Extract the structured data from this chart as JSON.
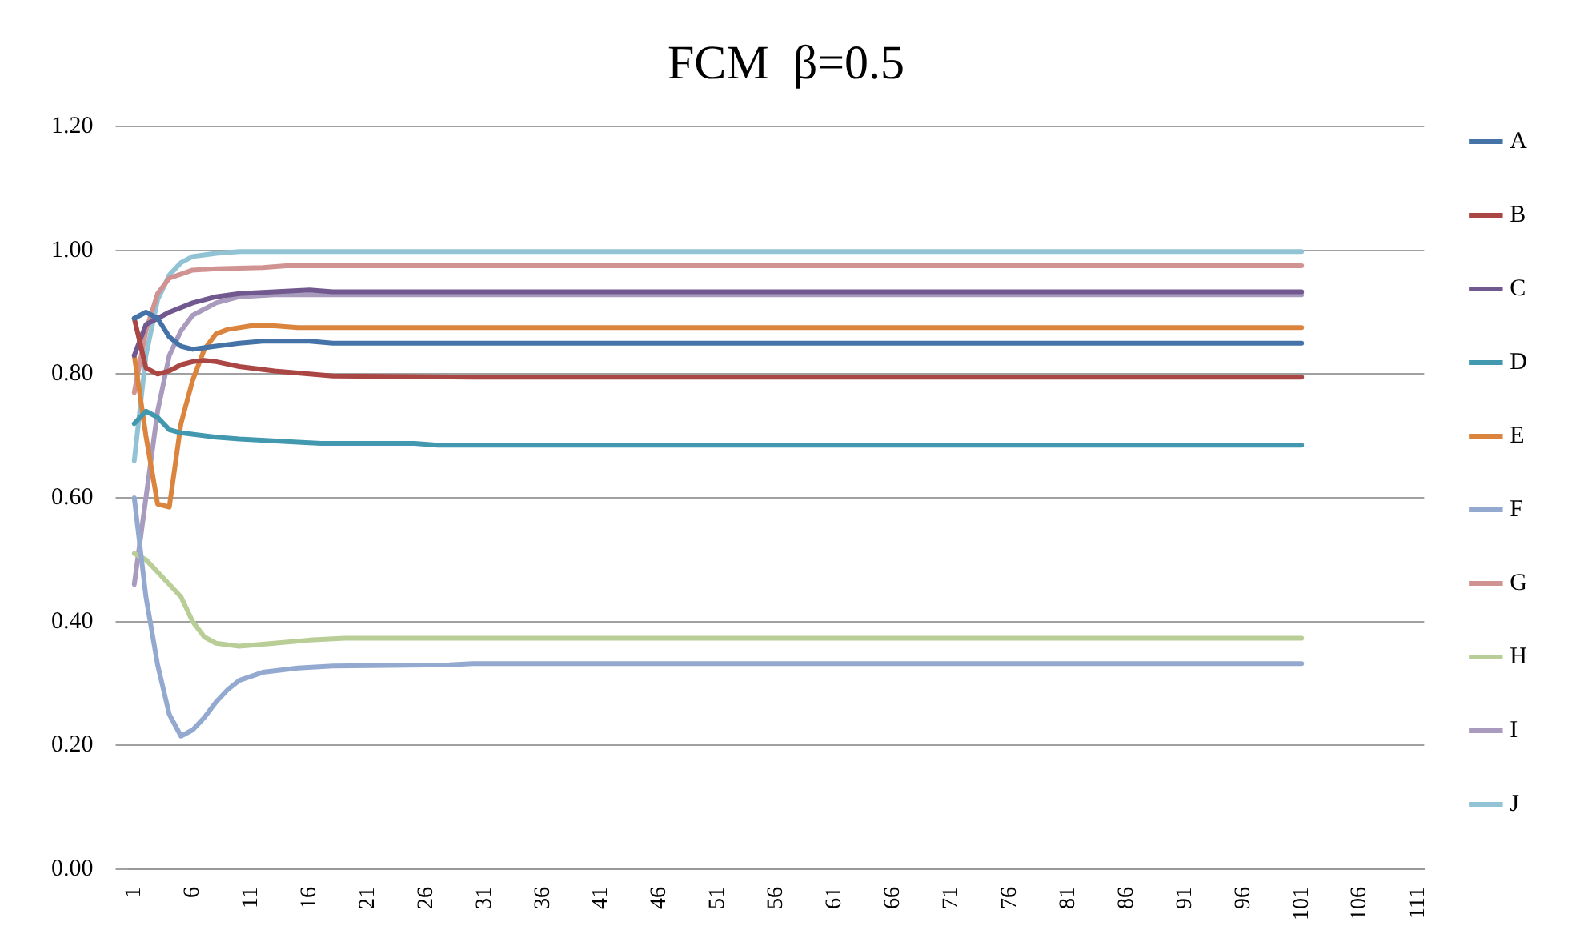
{
  "chart_data": {
    "type": "line",
    "title": "FCM  β=0.5",
    "xlim": [
      0.5,
      111.5
    ],
    "xticks": [
      1,
      6,
      11,
      16,
      21,
      26,
      31,
      36,
      41,
      46,
      51,
      56,
      61,
      66,
      71,
      76,
      81,
      86,
      91,
      96,
      101,
      106,
      111
    ],
    "ylim": [
      0,
      1.2
    ],
    "yticks": [
      {
        "value": 0,
        "label": "0.00"
      },
      {
        "value": 0.2,
        "label": "0.20"
      },
      {
        "value": 0.4,
        "label": "0.40"
      },
      {
        "value": 0.6,
        "label": "0.60"
      },
      {
        "value": 0.8,
        "label": "0.80"
      },
      {
        "value": 1,
        "label": "1.00"
      },
      {
        "value": 1.2,
        "label": "1.20"
      }
    ],
    "grid": "y",
    "legend": "right",
    "marker": "none",
    "line_style": "solid",
    "series": [
      {
        "name": "A",
        "color": "#4573a7",
        "x": [
          1,
          2,
          3,
          4,
          5,
          6,
          8,
          10,
          12,
          16,
          18,
          101
        ],
        "values": [
          0.89,
          0.9,
          0.89,
          0.86,
          0.845,
          0.84,
          0.845,
          0.85,
          0.853,
          0.853,
          0.85,
          0.85
        ]
      },
      {
        "name": "B",
        "color": "#aa4643",
        "x": [
          1,
          2,
          3,
          4,
          5,
          6,
          7,
          8,
          10,
          13,
          16,
          18,
          30,
          101
        ],
        "values": [
          0.89,
          0.81,
          0.8,
          0.805,
          0.815,
          0.82,
          0.822,
          0.82,
          0.812,
          0.805,
          0.8,
          0.797,
          0.795,
          0.795
        ]
      },
      {
        "name": "C",
        "color": "#71588f",
        "x": [
          1,
          2,
          3,
          4,
          6,
          8,
          10,
          13,
          16,
          18,
          101
        ],
        "values": [
          0.83,
          0.88,
          0.89,
          0.9,
          0.915,
          0.925,
          0.93,
          0.933,
          0.936,
          0.933,
          0.933
        ]
      },
      {
        "name": "D",
        "color": "#4198af",
        "x": [
          1,
          2,
          3,
          4,
          5,
          8,
          10,
          15,
          17,
          25,
          27,
          101
        ],
        "values": [
          0.72,
          0.74,
          0.73,
          0.71,
          0.705,
          0.698,
          0.695,
          0.69,
          0.688,
          0.688,
          0.685,
          0.685
        ]
      },
      {
        "name": "E",
        "color": "#db843d",
        "x": [
          1,
          2,
          3,
          4,
          5,
          6,
          7,
          8,
          9,
          11,
          13,
          15,
          101
        ],
        "values": [
          0.83,
          0.7,
          0.59,
          0.585,
          0.72,
          0.79,
          0.84,
          0.865,
          0.872,
          0.878,
          0.878,
          0.875,
          0.875
        ]
      },
      {
        "name": "F",
        "color": "#93a9cf",
        "x": [
          1,
          2,
          3,
          4,
          5,
          6,
          7,
          8,
          9,
          10,
          12,
          15,
          18,
          28,
          30,
          101
        ],
        "values": [
          0.6,
          0.44,
          0.33,
          0.25,
          0.215,
          0.225,
          0.245,
          0.27,
          0.29,
          0.305,
          0.318,
          0.325,
          0.328,
          0.33,
          0.332,
          0.332
        ]
      },
      {
        "name": "G",
        "color": "#d19392",
        "x": [
          1,
          2,
          3,
          4,
          6,
          8,
          12,
          14,
          101
        ],
        "values": [
          0.77,
          0.87,
          0.93,
          0.955,
          0.968,
          0.97,
          0.972,
          0.975,
          0.975
        ]
      },
      {
        "name": "H",
        "color": "#b9cd96",
        "x": [
          1,
          2,
          3,
          4,
          5,
          6,
          7,
          8,
          10,
          13,
          16,
          19,
          101
        ],
        "values": [
          0.51,
          0.5,
          0.48,
          0.46,
          0.44,
          0.4,
          0.375,
          0.365,
          0.36,
          0.365,
          0.37,
          0.373,
          0.373
        ]
      },
      {
        "name": "I",
        "color": "#a99bbd",
        "x": [
          1,
          2,
          3,
          4,
          5,
          6,
          8,
          10,
          13,
          101
        ],
        "values": [
          0.46,
          0.6,
          0.74,
          0.83,
          0.87,
          0.895,
          0.915,
          0.925,
          0.928,
          0.928
        ]
      },
      {
        "name": "J",
        "color": "#92c3d5",
        "x": [
          1,
          2,
          3,
          4,
          5,
          6,
          8,
          10,
          101
        ],
        "values": [
          0.66,
          0.83,
          0.92,
          0.96,
          0.98,
          0.99,
          0.995,
          0.998,
          0.998
        ]
      }
    ]
  }
}
